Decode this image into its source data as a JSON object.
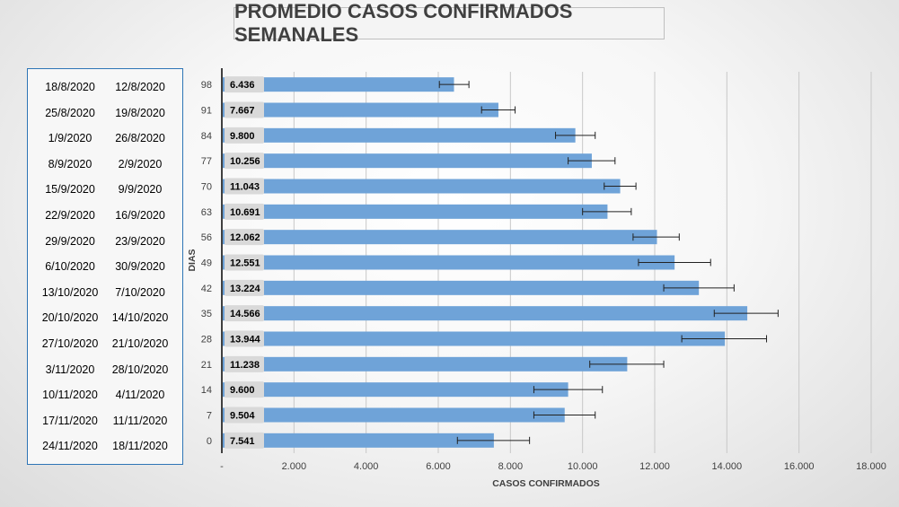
{
  "title": "PROMEDIO CASOS CONFIRMADOS SEMANALES",
  "date_table": [
    {
      "end": "18/8/2020",
      "start": "12/8/2020"
    },
    {
      "end": "25/8/2020",
      "start": "19/8/2020"
    },
    {
      "end": "1/9/2020",
      "start": "26/8/2020"
    },
    {
      "end": "8/9/2020",
      "start": "2/9/2020"
    },
    {
      "end": "15/9/2020",
      "start": "9/9/2020"
    },
    {
      "end": "22/9/2020",
      "start": "16/9/2020"
    },
    {
      "end": "29/9/2020",
      "start": "23/9/2020"
    },
    {
      "end": "6/10/2020",
      "start": "30/9/2020"
    },
    {
      "end": "13/10/2020",
      "start": "7/10/2020"
    },
    {
      "end": "20/10/2020",
      "start": "14/10/2020"
    },
    {
      "end": "27/10/2020",
      "start": "21/10/2020"
    },
    {
      "end": "3/11/2020",
      "start": "28/10/2020"
    },
    {
      "end": "10/11/2020",
      "start": "4/11/2020"
    },
    {
      "end": "17/11/2020",
      "start": "11/11/2020"
    },
    {
      "end": "24/11/2020",
      "start": "18/11/2020"
    }
  ],
  "chart_data": {
    "type": "bar",
    "orientation": "horizontal",
    "title": "PROMEDIO CASOS CONFIRMADOS SEMANALES",
    "xlabel": "CASOS CONFIRMADOS",
    "ylabel": "DIAS",
    "xlim": [
      0,
      18000
    ],
    "x_ticks": [
      "-",
      "2.000",
      "4.000",
      "6.000",
      "8.000",
      "10.000",
      "12.000",
      "14.000",
      "16.000",
      "18.000"
    ],
    "x_tick_values": [
      0,
      2000,
      4000,
      6000,
      8000,
      10000,
      12000,
      14000,
      16000,
      18000
    ],
    "categories": [
      "98",
      "91",
      "84",
      "77",
      "70",
      "63",
      "56",
      "49",
      "42",
      "35",
      "28",
      "21",
      "14",
      "7",
      "0"
    ],
    "values": [
      6436,
      7667,
      9800,
      10256,
      11043,
      10691,
      12062,
      12551,
      13224,
      14566,
      13944,
      11238,
      9600,
      9504,
      7541
    ],
    "value_labels": [
      "6.436",
      "7.667",
      "9.800",
      "10.256",
      "11.043",
      "10.691",
      "12.062",
      "12.551",
      "13.224",
      "14.566",
      "13.944",
      "11.238",
      "9.600",
      "9.504",
      "7.541"
    ],
    "error_low": [
      6030,
      7200,
      9250,
      9600,
      10600,
      10000,
      11400,
      11550,
      12250,
      13650,
      12750,
      10200,
      8650,
      8650,
      6530
    ],
    "error_high": [
      6850,
      8130,
      10350,
      10900,
      11480,
      11350,
      12680,
      13550,
      14200,
      15420,
      15100,
      12250,
      10550,
      10350,
      8530
    ],
    "grid": true,
    "bar_color": "#6fa3d8",
    "legend": "none"
  }
}
